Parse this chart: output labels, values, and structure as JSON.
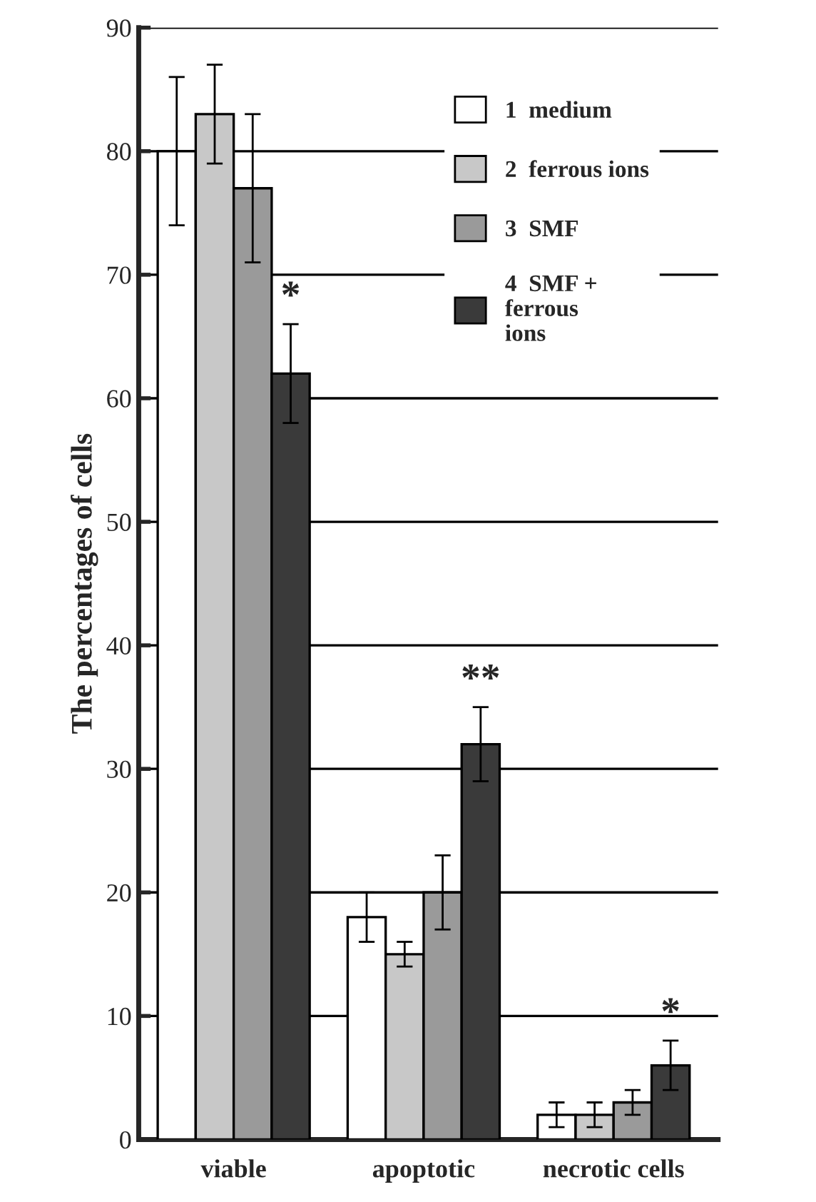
{
  "chart_data": {
    "type": "bar",
    "ylabel": "The percentages of cells",
    "categories": [
      "viable",
      "apoptotic",
      "necrotic cells"
    ],
    "series": [
      {
        "name": "1  medium",
        "color": "#ffffff",
        "values": [
          80,
          18,
          2
        ],
        "errors": [
          6,
          2,
          1
        ]
      },
      {
        "name": "2  ferrous ions",
        "color": "#c8c8c8",
        "values": [
          83,
          15,
          2
        ],
        "errors": [
          4,
          1,
          1
        ]
      },
      {
        "name": "3  SMF",
        "color": "#9a9a9a",
        "values": [
          77,
          20,
          3
        ],
        "errors": [
          6,
          3,
          1
        ]
      },
      {
        "name": "4  SMF +\nferrous\nions",
        "color": "#3a3a3a",
        "values": [
          62,
          32,
          6
        ],
        "errors": [
          4,
          3,
          2
        ]
      }
    ],
    "annotations": [
      "*",
      "**",
      "*"
    ],
    "ylim": [
      0,
      90
    ],
    "yticks": [
      0,
      10,
      20,
      30,
      40,
      50,
      60,
      70,
      80,
      90
    ],
    "grid": "y",
    "legend": "top right"
  }
}
